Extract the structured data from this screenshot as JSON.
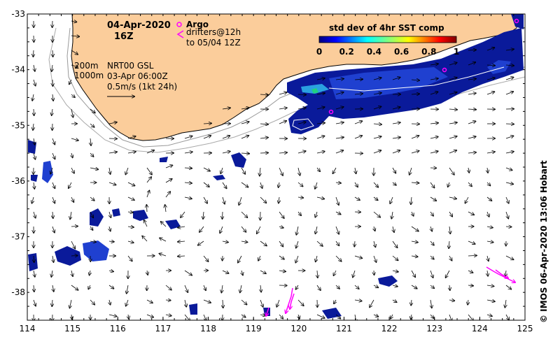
{
  "map": {
    "lon_range": [
      114,
      125
    ],
    "lat_range": [
      -38.5,
      -33
    ],
    "lon_ticks": [
      114,
      115,
      116,
      117,
      118,
      119,
      120,
      121,
      122,
      123,
      124,
      125
    ],
    "lat_ticks": [
      -33,
      -34,
      -35,
      -36,
      -37,
      -38
    ],
    "land_color": "#fbcd9b",
    "argo_color": "#ff00ff"
  },
  "annotations": {
    "date": "04-Apr-2020",
    "time": "16Z",
    "argo_label": "Argo",
    "drifters_line1": "drifters@12h",
    "drifters_line2": "to 05/04 12Z",
    "depth_200": "200m",
    "depth_1000": "1000m",
    "gsl_product": "NRT00 GSL",
    "gsl_time": "03-Apr 06:00Z",
    "scale_label": "0.5m/s (1kt 24h)"
  },
  "colorbar": {
    "title": "std dev of 4hr SST comp",
    "tick_labels": [
      "0",
      "0.2",
      "0.4",
      "0.6",
      "0.8",
      "1"
    ]
  },
  "credit": "© IMOS 06-Apr-2020 13:06 Hobart"
}
